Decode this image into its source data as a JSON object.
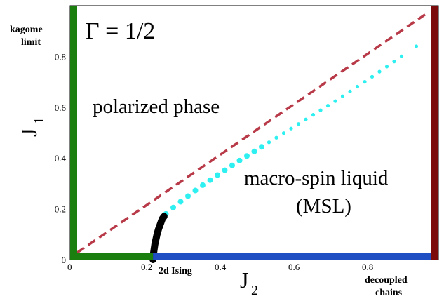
{
  "chart_data": {
    "type": "scatter",
    "gamma_label": "Γ = 1/2",
    "xlabel": "J",
    "xlabel_sub": "2",
    "ylabel": "J",
    "ylabel_sub": "1",
    "xlim": [
      0,
      1
    ],
    "ylim": [
      0,
      1
    ],
    "x_ticks": [
      "0",
      "0.2",
      "0.4",
      "0.6",
      "0.8"
    ],
    "x_tick_values": [
      0,
      0.2,
      0.4,
      0.6,
      0.8
    ],
    "y_ticks": [
      "0",
      "0.2",
      "0.4",
      "0.6",
      "0.8"
    ],
    "y_tick_values": [
      0,
      0.2,
      0.4,
      0.6,
      0.8
    ],
    "region_labels": {
      "polarized": "polarized phase",
      "msl_line1": "macro-spin liquid",
      "msl_line2": "(MSL)"
    },
    "corner_labels": {
      "kagome_line1": "kagome",
      "kagome_line2": "limit",
      "ising": "2d Ising",
      "chains_line1": "decoupled",
      "chains_line2": "chains"
    },
    "colors": {
      "green_boundary": "#1a7f0f",
      "blue_boundary": "#1f4fc2",
      "darkred_boundary": "#7b0a0a",
      "dashed_line": "#b83a48",
      "cyan_points": "#2ef0f0",
      "black_curve": "#000000"
    },
    "dashed_line": {
      "x": [
        0,
        1
      ],
      "y": [
        0,
        1
      ]
    },
    "black_curve": {
      "x": [
        0.225,
        0.226,
        0.228,
        0.23,
        0.233,
        0.236,
        0.24,
        0.245,
        0.25,
        0.255
      ],
      "y": [
        0.0,
        0.02,
        0.04,
        0.06,
        0.08,
        0.1,
        0.12,
        0.14,
        0.16,
        0.17
      ]
    },
    "cyan_points": {
      "x": [
        0.26,
        0.28,
        0.3,
        0.32,
        0.34,
        0.36,
        0.38,
        0.4,
        0.42,
        0.44,
        0.46,
        0.48,
        0.5,
        0.52,
        0.54,
        0.56,
        0.58,
        0.6,
        0.62,
        0.64,
        0.66,
        0.68,
        0.7,
        0.72,
        0.74,
        0.76,
        0.78,
        0.8,
        0.82,
        0.84,
        0.86,
        0.88,
        0.9,
        0.94
      ],
      "y": [
        0.18,
        0.205,
        0.228,
        0.25,
        0.272,
        0.293,
        0.313,
        0.333,
        0.352,
        0.371,
        0.39,
        0.408,
        0.426,
        0.444,
        0.462,
        0.48,
        0.498,
        0.516,
        0.534,
        0.552,
        0.57,
        0.588,
        0.606,
        0.624,
        0.643,
        0.662,
        0.681,
        0.7,
        0.72,
        0.74,
        0.76,
        0.78,
        0.8,
        0.84
      ]
    }
  }
}
